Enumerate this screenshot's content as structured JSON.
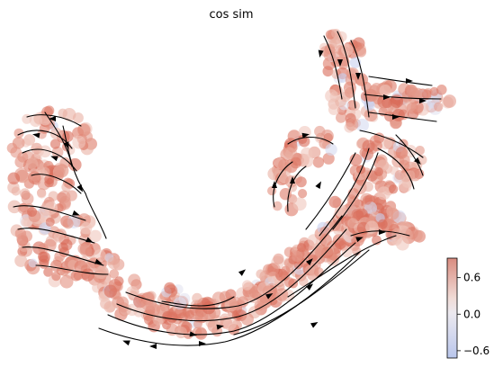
{
  "chart_data": {
    "type": "scatter",
    "title": "cos sim",
    "xlabel": "",
    "ylabel": "",
    "axes_visible": false,
    "overlay": "velocity streamlines with arrowheads",
    "colorbar": {
      "label": "",
      "colormap": "coolwarm",
      "range": [
        -0.72,
        0.92
      ],
      "ticks": [
        0.6,
        0.0,
        -0.6
      ],
      "tick_labels": [
        "0.6",
        "0.0",
        "−0.6"
      ],
      "colors": {
        "low": "#b9c6ec",
        "mid": "#f1eeee",
        "high": "#d26b5c"
      }
    },
    "point_color": "#e08675",
    "streamline_color": "#000000"
  }
}
